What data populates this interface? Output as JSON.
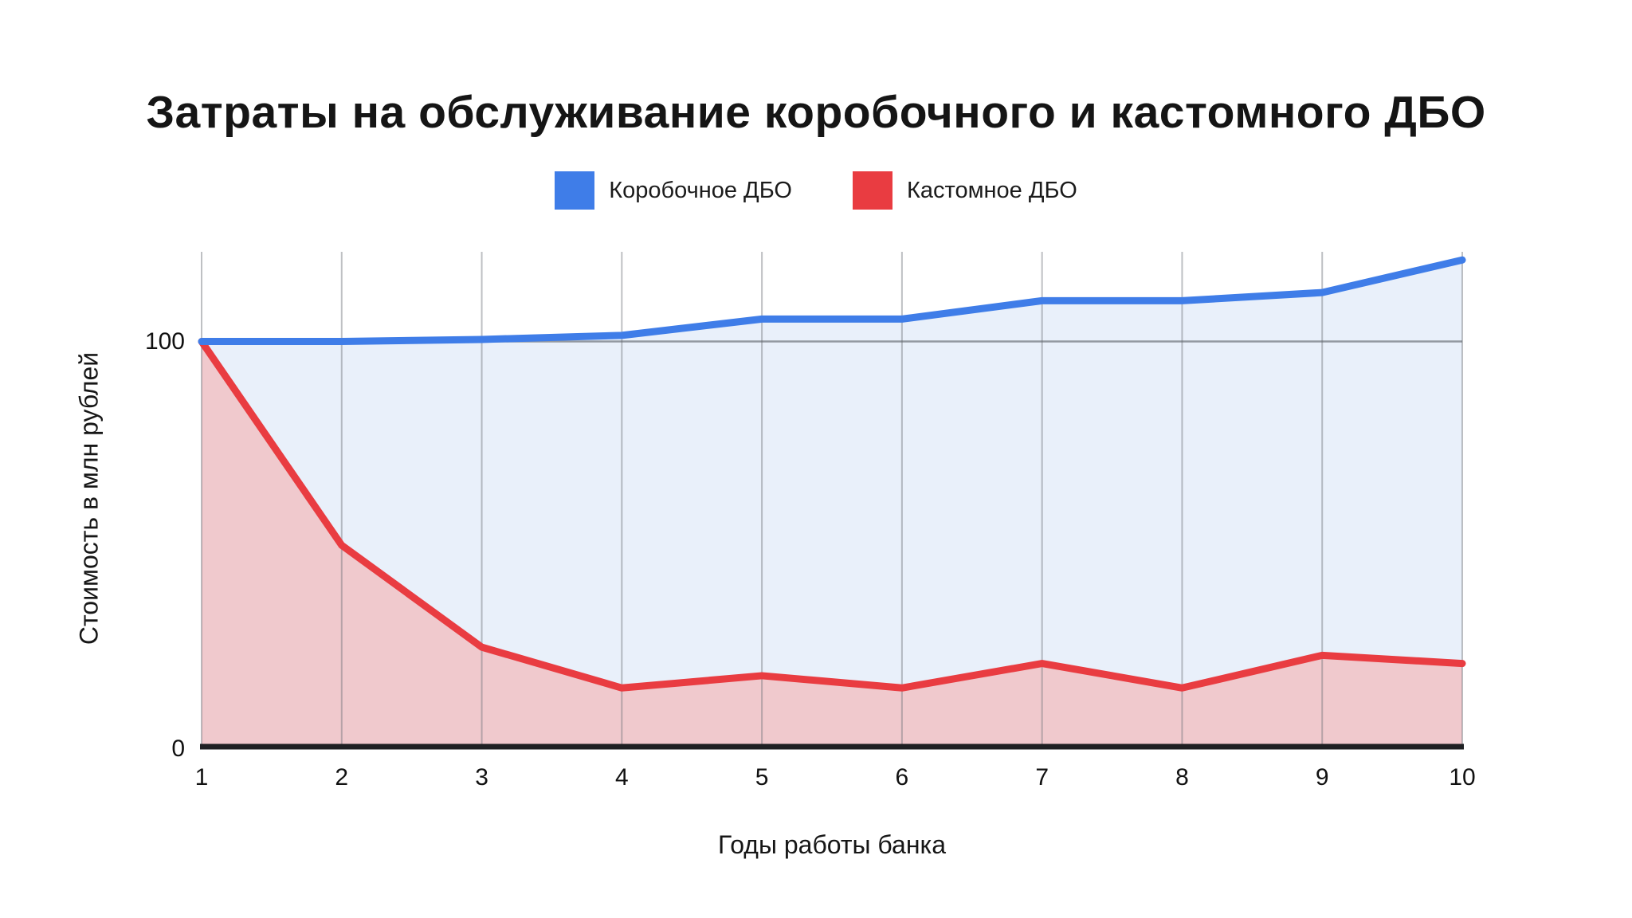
{
  "chart_data": {
    "type": "area",
    "title": "Затраты на обслуживание коробочного и кастомного ДБО",
    "xlabel": "Годы работы банка",
    "ylabel": "Стоимость в млн рублей",
    "x": [
      1,
      2,
      3,
      4,
      5,
      6,
      7,
      8,
      9,
      10
    ],
    "xticks": [
      1,
      2,
      3,
      4,
      5,
      6,
      7,
      8,
      9,
      10
    ],
    "yticks": [
      0,
      100
    ],
    "ylim": [
      0,
      122
    ],
    "grid": "vertical gridline per year plus horizontal line at 100",
    "legend_position": "top-center",
    "series": [
      {
        "name": "Коробочное ДБО",
        "color": "#3F7DE8",
        "fill": "#E9F0FA",
        "values": [
          100,
          100,
          100.5,
          101.5,
          105.5,
          105.5,
          110,
          110,
          112,
          120
        ]
      },
      {
        "name": "Кастомное ДБО",
        "color": "#E93C41",
        "fill": "#F0C9CD",
        "values": [
          100,
          50,
          25,
          15,
          18,
          15,
          21,
          15,
          23,
          21
        ]
      }
    ]
  },
  "style": {
    "background": "#FFFFFF",
    "grid_color": "rgba(110,115,122,0.45)",
    "ref_line_color": "rgba(90,95,102,0.6)",
    "axis_color": "#1F2023",
    "text_color": "#141414"
  }
}
